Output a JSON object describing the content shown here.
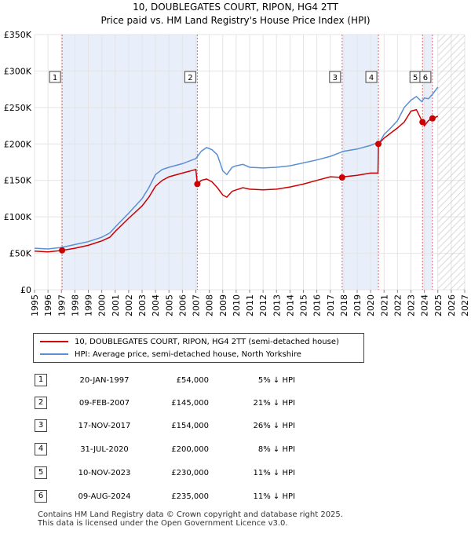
{
  "title_line1": "10, DOUBLEGATES COURT, RIPON, HG4 2TT",
  "title_line2": "Price paid vs. HM Land Registry's House Price Index (HPI)",
  "legend": {
    "property": "10, DOUBLEGATES COURT, RIPON, HG4 2TT (semi-detached house)",
    "hpi": "HPI: Average price, semi-detached house, North Yorkshire"
  },
  "colors": {
    "property": "#cc0000",
    "hpi": "#5b8fd4",
    "shade": "#e8eefa",
    "future": "#cccccc"
  },
  "chart_data": {
    "type": "line",
    "title": "10, DOUBLEGATES COURT, RIPON, HG4 2TT - Price paid vs. HM Land Registry's House Price Index (HPI)",
    "xlabel": "",
    "ylabel": "",
    "xlim": [
      1995,
      2027
    ],
    "ylim": [
      0,
      350000
    ],
    "x_ticks": [
      "1995",
      "1996",
      "1997",
      "1998",
      "1999",
      "2000",
      "2001",
      "2002",
      "2003",
      "2004",
      "2005",
      "2006",
      "2007",
      "2008",
      "2009",
      "2010",
      "2011",
      "2012",
      "2013",
      "2014",
      "2015",
      "2016",
      "2017",
      "2018",
      "2019",
      "2020",
      "2021",
      "2022",
      "2023",
      "2024",
      "2025",
      "2026",
      "2027"
    ],
    "y_ticks": [
      {
        "v": 0,
        "label": "£0"
      },
      {
        "v": 50000,
        "label": "£50K"
      },
      {
        "v": 100000,
        "label": "£100K"
      },
      {
        "v": 150000,
        "label": "£150K"
      },
      {
        "v": 200000,
        "label": "£200K"
      },
      {
        "v": 250000,
        "label": "£250K"
      },
      {
        "v": 300000,
        "label": "£300K"
      },
      {
        "v": 350000,
        "label": "£350K"
      }
    ],
    "projection_start": 2025.0,
    "series": [
      {
        "name": "HPI: Average price, semi-detached house, North Yorkshire",
        "x": [
          1995,
          1996,
          1997,
          1998,
          1999,
          2000,
          2000.6,
          2001,
          2002,
          2003,
          2003.5,
          2004,
          2004.5,
          2005,
          2006,
          2007,
          2007.4,
          2007.8,
          2008.2,
          2008.6,
          2009,
          2009.3,
          2009.7,
          2010,
          2010.5,
          2011,
          2012,
          2013,
          2014,
          2015,
          2016,
          2017,
          2018,
          2019,
          2020,
          2020.7,
          2021,
          2021.5,
          2022,
          2022.5,
          2023,
          2023.4,
          2023.8,
          2024,
          2024.3,
          2024.6,
          2025
        ],
        "values": [
          57000,
          56000,
          58000,
          62000,
          66000,
          72000,
          78000,
          86000,
          105000,
          125000,
          140000,
          158000,
          165000,
          168000,
          173000,
          180000,
          190000,
          195000,
          192000,
          185000,
          163000,
          158000,
          168000,
          170000,
          172000,
          168000,
          167000,
          168000,
          170000,
          174000,
          178000,
          183000,
          190000,
          193000,
          198000,
          203000,
          213000,
          222000,
          232000,
          250000,
          260000,
          265000,
          258000,
          263000,
          262000,
          268000,
          278000
        ]
      },
      {
        "name": "10, DOUBLEGATES COURT, RIPON, HG4 2TT (semi-detached house)",
        "x": [
          1995,
          1996,
          1997.05,
          1998,
          1999,
          2000,
          2000.6,
          2001,
          2002,
          2003,
          2003.5,
          2004,
          2004.5,
          2005,
          2006,
          2007.0,
          2007.11,
          2007.4,
          2007.8,
          2008.2,
          2008.6,
          2009,
          2009.3,
          2009.7,
          2010,
          2010.5,
          2011,
          2012,
          2013,
          2014,
          2015,
          2016,
          2017,
          2017.88,
          2018,
          2019,
          2020,
          2020.55,
          2020.58,
          2021,
          2021.5,
          2022,
          2022.5,
          2023,
          2023.4,
          2023.86,
          2024,
          2024.3,
          2024.6,
          2025
        ],
        "values": [
          53000,
          52000,
          54000,
          57000,
          61000,
          67000,
          72000,
          80000,
          98000,
          115000,
          127000,
          142000,
          150000,
          155000,
          160000,
          165000,
          145000,
          150000,
          152000,
          148000,
          140000,
          130000,
          127000,
          135000,
          137000,
          140000,
          138000,
          137000,
          138000,
          141000,
          145000,
          150000,
          155000,
          154000,
          155000,
          157000,
          160000,
          160000,
          200000,
          208000,
          215000,
          222000,
          230000,
          245000,
          247000,
          230000,
          225000,
          232000,
          235000,
          238000
        ]
      }
    ],
    "sales": [
      {
        "n": "1",
        "x": 1997.05,
        "price": 54000
      },
      {
        "n": "2",
        "x": 2007.11,
        "price": 145000
      },
      {
        "n": "3",
        "x": 2017.88,
        "price": 154000
      },
      {
        "n": "4",
        "x": 2020.58,
        "price": 200000
      },
      {
        "n": "5",
        "x": 2023.86,
        "price": 230000
      },
      {
        "n": "6",
        "x": 2024.6,
        "price": 235000
      }
    ],
    "shaded_ranges": [
      [
        1997.05,
        2007.11
      ],
      [
        2017.88,
        2020.58
      ],
      [
        2023.86,
        2024.6
      ]
    ]
  },
  "table": [
    {
      "n": "1",
      "date": "20-JAN-1997",
      "price": "£54,000",
      "hpi": "5% ↓ HPI"
    },
    {
      "n": "2",
      "date": "09-FEB-2007",
      "price": "£145,000",
      "hpi": "21% ↓ HPI"
    },
    {
      "n": "3",
      "date": "17-NOV-2017",
      "price": "£154,000",
      "hpi": "26% ↓ HPI"
    },
    {
      "n": "4",
      "date": "31-JUL-2020",
      "price": "£200,000",
      "hpi": "8% ↓ HPI"
    },
    {
      "n": "5",
      "date": "10-NOV-2023",
      "price": "£230,000",
      "hpi": "11% ↓ HPI"
    },
    {
      "n": "6",
      "date": "09-AUG-2024",
      "price": "£235,000",
      "hpi": "11% ↓ HPI"
    }
  ],
  "footer": {
    "line1": "Contains HM Land Registry data © Crown copyright and database right 2025.",
    "line2": "This data is licensed under the Open Government Licence v3.0."
  }
}
